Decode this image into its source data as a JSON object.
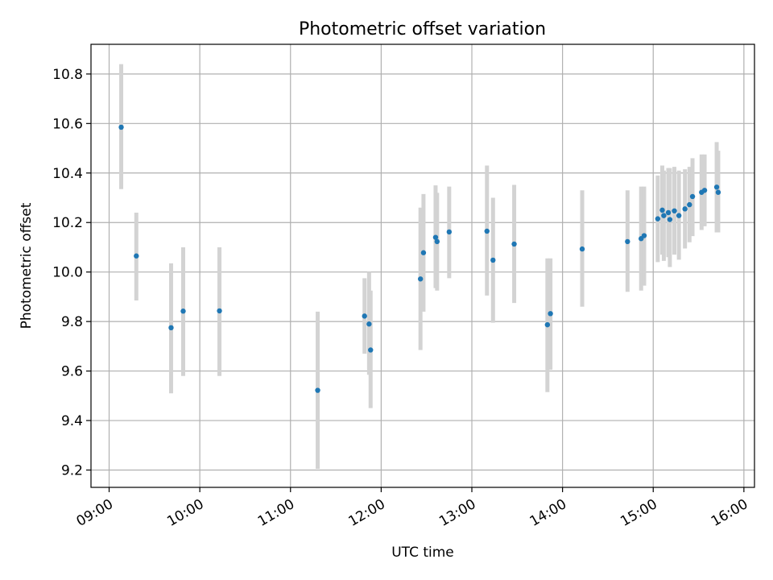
{
  "chart_data": {
    "type": "scatter",
    "title": "Photometric offset variation",
    "xlabel": "UTC time",
    "ylabel": "Photometric offset",
    "x_ticks": [
      "09:00",
      "10:00",
      "11:00",
      "12:00",
      "13:00",
      "14:00",
      "15:00",
      "16:00"
    ],
    "y_ticks": [
      "9.2",
      "9.4",
      "9.6",
      "9.8",
      "10.0",
      "10.2",
      "10.4",
      "10.6",
      "10.8"
    ],
    "xlim": [
      "08:48",
      "16:07"
    ],
    "ylim": [
      9.13,
      10.92
    ],
    "grid": true,
    "colors": {
      "points": "#1f77b4",
      "errorbars": "#d3d3d3",
      "grid": "#b0b0b0"
    },
    "points": [
      {
        "t": "09:08",
        "y": 10.585,
        "lo": 10.335,
        "hi": 10.84
      },
      {
        "t": "09:18",
        "y": 10.065,
        "lo": 9.885,
        "hi": 10.24
      },
      {
        "t": "09:41",
        "y": 9.775,
        "lo": 9.51,
        "hi": 10.035
      },
      {
        "t": "09:49",
        "y": 9.842,
        "lo": 9.58,
        "hi": 10.1
      },
      {
        "t": "10:13",
        "y": 9.843,
        "lo": 9.58,
        "hi": 10.1
      },
      {
        "t": "11:18",
        "y": 9.522,
        "lo": 9.205,
        "hi": 9.84
      },
      {
        "t": "11:49",
        "y": 9.822,
        "lo": 9.67,
        "hi": 9.975
      },
      {
        "t": "11:52",
        "y": 9.79,
        "lo": 9.585,
        "hi": 10.0
      },
      {
        "t": "11:53",
        "y": 9.685,
        "lo": 9.45,
        "hi": 9.925
      },
      {
        "t": "12:26",
        "y": 9.972,
        "lo": 9.685,
        "hi": 10.26
      },
      {
        "t": "12:28",
        "y": 10.078,
        "lo": 9.84,
        "hi": 10.315
      },
      {
        "t": "12:36",
        "y": 10.14,
        "lo": 9.935,
        "hi": 10.35
      },
      {
        "t": "12:37",
        "y": 10.123,
        "lo": 9.925,
        "hi": 10.32
      },
      {
        "t": "12:45",
        "y": 10.162,
        "lo": 9.975,
        "hi": 10.345
      },
      {
        "t": "13:10",
        "y": 10.165,
        "lo": 9.905,
        "hi": 10.43
      },
      {
        "t": "13:14",
        "y": 10.048,
        "lo": 9.795,
        "hi": 10.3
      },
      {
        "t": "13:28",
        "y": 10.113,
        "lo": 9.875,
        "hi": 10.352
      },
      {
        "t": "13:50",
        "y": 9.787,
        "lo": 9.515,
        "hi": 10.055
      },
      {
        "t": "13:52",
        "y": 9.832,
        "lo": 9.605,
        "hi": 10.055
      },
      {
        "t": "14:13",
        "y": 10.093,
        "lo": 9.86,
        "hi": 10.33
      },
      {
        "t": "14:43",
        "y": 10.123,
        "lo": 9.92,
        "hi": 10.33
      },
      {
        "t": "14:52",
        "y": 10.135,
        "lo": 9.925,
        "hi": 10.345
      },
      {
        "t": "14:54",
        "y": 10.147,
        "lo": 9.945,
        "hi": 10.345
      },
      {
        "t": "15:03",
        "y": 10.215,
        "lo": 10.04,
        "hi": 10.39
      },
      {
        "t": "15:06",
        "y": 10.25,
        "lo": 10.07,
        "hi": 10.43
      },
      {
        "t": "15:07",
        "y": 10.228,
        "lo": 10.045,
        "hi": 10.41
      },
      {
        "t": "15:10",
        "y": 10.24,
        "lo": 10.06,
        "hi": 10.42
      },
      {
        "t": "15:11",
        "y": 10.212,
        "lo": 10.02,
        "hi": 10.42
      },
      {
        "t": "15:14",
        "y": 10.247,
        "lo": 10.07,
        "hi": 10.425
      },
      {
        "t": "15:17",
        "y": 10.228,
        "lo": 10.05,
        "hi": 10.41
      },
      {
        "t": "15:21",
        "y": 10.255,
        "lo": 10.095,
        "hi": 10.415
      },
      {
        "t": "15:24",
        "y": 10.272,
        "lo": 10.12,
        "hi": 10.425
      },
      {
        "t": "15:26",
        "y": 10.305,
        "lo": 10.145,
        "hi": 10.46
      },
      {
        "t": "15:32",
        "y": 10.322,
        "lo": 10.17,
        "hi": 10.475
      },
      {
        "t": "15:34",
        "y": 10.33,
        "lo": 10.185,
        "hi": 10.475
      },
      {
        "t": "15:42",
        "y": 10.343,
        "lo": 10.16,
        "hi": 10.525
      },
      {
        "t": "15:43",
        "y": 10.322,
        "lo": 10.16,
        "hi": 10.49
      }
    ]
  }
}
